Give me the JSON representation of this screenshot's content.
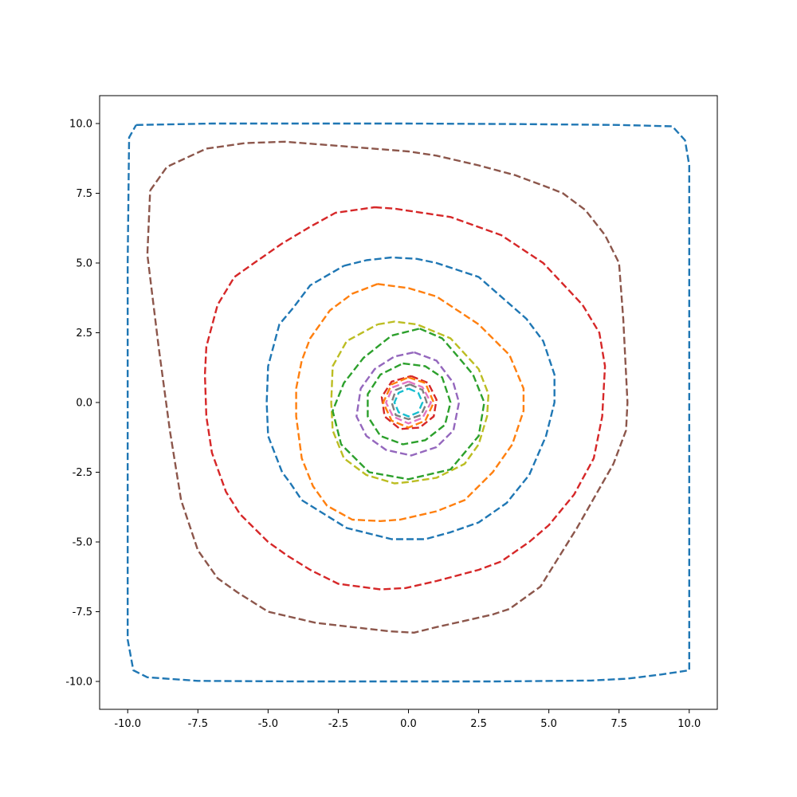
{
  "chart_data": {
    "type": "line",
    "title": "",
    "xlabel": "",
    "ylabel": "",
    "xlim": [
      -11,
      11
    ],
    "ylim": [
      -11,
      11
    ],
    "grid": false,
    "legend": "none",
    "x_ticks": [
      "-10.0",
      "-7.5",
      "-5.0",
      "-2.5",
      "0.0",
      "2.5",
      "5.0",
      "7.5",
      "10.0"
    ],
    "y_ticks": [
      "-10.0",
      "-7.5",
      "-5.0",
      "-2.5",
      "0.0",
      "2.5",
      "5.0",
      "7.5",
      "10.0"
    ],
    "series": [
      {
        "color": "#1f77b4",
        "style": "dashed",
        "points": [
          [
            -9.7,
            9.95
          ],
          [
            -7.0,
            10.0
          ],
          [
            -3.0,
            10.0
          ],
          [
            0.0,
            10.0
          ],
          [
            4.0,
            9.98
          ],
          [
            7.5,
            9.95
          ],
          [
            9.4,
            9.9
          ],
          [
            9.85,
            9.4
          ],
          [
            10.0,
            8.5
          ],
          [
            10.0,
            5.0
          ],
          [
            10.0,
            0.0
          ],
          [
            10.0,
            -5.0
          ],
          [
            10.0,
            -9.6
          ],
          [
            9.0,
            -9.75
          ],
          [
            7.8,
            -9.9
          ],
          [
            6.5,
            -9.97
          ],
          [
            3.0,
            -10.0
          ],
          [
            0.0,
            -10.0
          ],
          [
            -4.0,
            -10.0
          ],
          [
            -7.5,
            -9.98
          ],
          [
            -9.3,
            -9.85
          ],
          [
            -9.8,
            -9.6
          ],
          [
            -10.0,
            -8.5
          ],
          [
            -10.0,
            -5.0
          ],
          [
            -10.0,
            0.0
          ],
          [
            -10.0,
            5.0
          ],
          [
            -9.95,
            9.5
          ],
          [
            -9.7,
            9.95
          ]
        ]
      },
      {
        "color": "#8c564b",
        "style": "dashed",
        "points": [
          [
            -9.2,
            7.6
          ],
          [
            -8.6,
            8.45
          ],
          [
            -7.2,
            9.1
          ],
          [
            -5.8,
            9.3
          ],
          [
            -4.4,
            9.35
          ],
          [
            -2.5,
            9.2
          ],
          [
            0.0,
            9.0
          ],
          [
            1.0,
            8.85
          ],
          [
            2.5,
            8.5
          ],
          [
            3.8,
            8.15
          ],
          [
            5.0,
            7.7
          ],
          [
            5.5,
            7.5
          ],
          [
            6.3,
            6.9
          ],
          [
            7.0,
            6.0
          ],
          [
            7.5,
            5.0
          ],
          [
            7.65,
            3.0
          ],
          [
            7.8,
            0.0
          ],
          [
            7.75,
            -1.0
          ],
          [
            7.3,
            -2.2
          ],
          [
            6.0,
            -4.5
          ],
          [
            4.7,
            -6.6
          ],
          [
            3.6,
            -7.4
          ],
          [
            3.0,
            -7.6
          ],
          [
            1.9,
            -7.85
          ],
          [
            1.0,
            -8.05
          ],
          [
            0.2,
            -8.25
          ],
          [
            -0.7,
            -8.2
          ],
          [
            -3.3,
            -7.9
          ],
          [
            -5.0,
            -7.5
          ],
          [
            -6.1,
            -6.8
          ],
          [
            -6.8,
            -6.3
          ],
          [
            -7.5,
            -5.3
          ],
          [
            -8.1,
            -3.5
          ],
          [
            -8.5,
            -1.0
          ],
          [
            -8.9,
            2.0
          ],
          [
            -9.3,
            5.3
          ],
          [
            -9.2,
            7.6
          ]
        ]
      },
      {
        "color": "#d62728",
        "style": "dashed",
        "points": [
          [
            -1.2,
            7.0
          ],
          [
            -0.5,
            6.95
          ],
          [
            1.5,
            6.65
          ],
          [
            3.3,
            6.0
          ],
          [
            4.8,
            5.0
          ],
          [
            6.2,
            3.5
          ],
          [
            6.8,
            2.5
          ],
          [
            7.0,
            1.3
          ],
          [
            6.9,
            -0.5
          ],
          [
            6.6,
            -2.0
          ],
          [
            5.9,
            -3.3
          ],
          [
            5.0,
            -4.4
          ],
          [
            4.3,
            -5.0
          ],
          [
            3.3,
            -5.7
          ],
          [
            2.5,
            -6.0
          ],
          [
            1.0,
            -6.4
          ],
          [
            -0.1,
            -6.65
          ],
          [
            -1.0,
            -6.7
          ],
          [
            -2.5,
            -6.5
          ],
          [
            -3.5,
            -6.0
          ],
          [
            -4.3,
            -5.5
          ],
          [
            -5.0,
            -5.0
          ],
          [
            -6.0,
            -4.0
          ],
          [
            -6.5,
            -3.2
          ],
          [
            -7.0,
            -1.8
          ],
          [
            -7.2,
            -0.5
          ],
          [
            -7.25,
            1.0
          ],
          [
            -7.2,
            2.0
          ],
          [
            -6.8,
            3.5
          ],
          [
            -6.2,
            4.5
          ],
          [
            -5.5,
            5.0
          ],
          [
            -4.5,
            5.7
          ],
          [
            -3.5,
            6.3
          ],
          [
            -2.6,
            6.8
          ],
          [
            -1.2,
            7.0
          ]
        ]
      },
      {
        "color": "#1f77b4",
        "style": "dashed",
        "points": [
          [
            -2.3,
            4.9
          ],
          [
            -1.5,
            5.1
          ],
          [
            -0.6,
            5.2
          ],
          [
            0.3,
            5.15
          ],
          [
            1.0,
            5.0
          ],
          [
            2.5,
            4.5
          ],
          [
            4.2,
            3.0
          ],
          [
            4.8,
            2.2
          ],
          [
            5.2,
            1.0
          ],
          [
            5.2,
            0.0
          ],
          [
            4.9,
            -1.2
          ],
          [
            4.3,
            -2.6
          ],
          [
            3.5,
            -3.6
          ],
          [
            2.5,
            -4.3
          ],
          [
            1.5,
            -4.65
          ],
          [
            0.6,
            -4.9
          ],
          [
            -0.6,
            -4.9
          ],
          [
            -2.2,
            -4.5
          ],
          [
            -3.0,
            -4.0
          ],
          [
            -3.8,
            -3.5
          ],
          [
            -4.2,
            -2.9
          ],
          [
            -4.5,
            -2.5
          ],
          [
            -5.0,
            -1.2
          ],
          [
            -5.05,
            0.0
          ],
          [
            -5.0,
            1.3
          ],
          [
            -4.6,
            2.8
          ],
          [
            -4.1,
            3.4
          ],
          [
            -3.5,
            4.2
          ],
          [
            -2.3,
            4.9
          ]
        ]
      },
      {
        "color": "#ff7f0e",
        "style": "dashed",
        "points": [
          [
            -1.1,
            4.25
          ],
          [
            0.0,
            4.1
          ],
          [
            1.0,
            3.8
          ],
          [
            2.5,
            2.8
          ],
          [
            3.6,
            1.7
          ],
          [
            4.1,
            0.5
          ],
          [
            4.1,
            -0.3
          ],
          [
            3.7,
            -1.5
          ],
          [
            3.0,
            -2.5
          ],
          [
            2.0,
            -3.5
          ],
          [
            1.0,
            -3.9
          ],
          [
            -0.3,
            -4.2
          ],
          [
            -1.0,
            -4.25
          ],
          [
            -2.0,
            -4.2
          ],
          [
            -2.9,
            -3.7
          ],
          [
            -3.4,
            -3.0
          ],
          [
            -3.8,
            -2.0
          ],
          [
            -4.0,
            -0.5
          ],
          [
            -4.0,
            0.5
          ],
          [
            -3.8,
            1.5
          ],
          [
            -3.5,
            2.3
          ],
          [
            -2.8,
            3.3
          ],
          [
            -2.0,
            3.9
          ],
          [
            -1.1,
            4.25
          ]
        ]
      },
      {
        "color": "#bcbd22",
        "style": "dashed",
        "points": [
          [
            -1.1,
            2.8
          ],
          [
            -0.5,
            2.9
          ],
          [
            0.3,
            2.8
          ],
          [
            1.5,
            2.3
          ],
          [
            2.5,
            1.2
          ],
          [
            2.85,
            0.3
          ],
          [
            2.8,
            -0.5
          ],
          [
            2.5,
            -1.5
          ],
          [
            2.0,
            -2.2
          ],
          [
            1.0,
            -2.7
          ],
          [
            0.0,
            -2.85
          ],
          [
            -0.5,
            -2.9
          ],
          [
            -1.5,
            -2.6
          ],
          [
            -2.3,
            -2.0
          ],
          [
            -2.7,
            -1.0
          ],
          [
            -2.75,
            0.0
          ],
          [
            -2.7,
            1.3
          ],
          [
            -2.2,
            2.2
          ],
          [
            -1.1,
            2.8
          ]
        ]
      },
      {
        "color": "#2ca02c",
        "style": "dashed",
        "points": [
          [
            0.4,
            2.65
          ],
          [
            1.2,
            2.3
          ],
          [
            1.8,
            1.6
          ],
          [
            2.3,
            1.0
          ],
          [
            2.7,
            0.0
          ],
          [
            2.5,
            -1.2
          ],
          [
            1.5,
            -2.4
          ],
          [
            0.0,
            -2.75
          ],
          [
            -1.4,
            -2.5
          ],
          [
            -2.4,
            -1.5
          ],
          [
            -2.7,
            -0.3
          ],
          [
            -2.3,
            0.7
          ],
          [
            -1.6,
            1.6
          ],
          [
            -0.6,
            2.4
          ],
          [
            0.4,
            2.65
          ]
        ]
      },
      {
        "color": "#9467bd",
        "style": "dashed",
        "points": [
          [
            0.2,
            1.8
          ],
          [
            1.0,
            1.5
          ],
          [
            1.6,
            0.7
          ],
          [
            1.8,
            0.0
          ],
          [
            1.6,
            -1.0
          ],
          [
            1.0,
            -1.6
          ],
          [
            0.1,
            -1.9
          ],
          [
            -0.8,
            -1.7
          ],
          [
            -1.5,
            -1.2
          ],
          [
            -1.85,
            -0.5
          ],
          [
            -1.7,
            0.5
          ],
          [
            -1.2,
            1.2
          ],
          [
            -0.5,
            1.65
          ],
          [
            0.2,
            1.8
          ]
        ]
      },
      {
        "color": "#2ca02c",
        "style": "dashed",
        "points": [
          [
            -0.2,
            1.4
          ],
          [
            0.6,
            1.3
          ],
          [
            1.2,
            0.9
          ],
          [
            1.5,
            0.0
          ],
          [
            1.3,
            -0.8
          ],
          [
            0.6,
            -1.35
          ],
          [
            -0.2,
            -1.5
          ],
          [
            -1.0,
            -1.2
          ],
          [
            -1.45,
            -0.5
          ],
          [
            -1.45,
            0.3
          ],
          [
            -1.0,
            1.0
          ],
          [
            -0.2,
            1.4
          ]
        ]
      },
      {
        "color": "#d62728",
        "style": "dashed",
        "points": [
          [
            0.1,
            0.95
          ],
          [
            0.7,
            0.7
          ],
          [
            1.0,
            0.1
          ],
          [
            0.9,
            -0.5
          ],
          [
            0.4,
            -0.9
          ],
          [
            -0.3,
            -0.95
          ],
          [
            -0.85,
            -0.5
          ],
          [
            -0.95,
            0.2
          ],
          [
            -0.6,
            0.75
          ],
          [
            0.1,
            0.95
          ]
        ]
      },
      {
        "color": "#ff7f0e",
        "style": "dashed",
        "points": [
          [
            0.0,
            0.9
          ],
          [
            0.6,
            0.7
          ],
          [
            0.9,
            0.0
          ],
          [
            0.6,
            -0.65
          ],
          [
            0.0,
            -0.9
          ],
          [
            -0.6,
            -0.65
          ],
          [
            -0.9,
            0.0
          ],
          [
            -0.6,
            0.65
          ],
          [
            0.0,
            0.9
          ]
        ]
      },
      {
        "color": "#e377c2",
        "style": "dashed",
        "points": [
          [
            0.0,
            0.75
          ],
          [
            0.5,
            0.55
          ],
          [
            0.8,
            0.0
          ],
          [
            0.5,
            -0.55
          ],
          [
            0.0,
            -0.75
          ],
          [
            -0.55,
            -0.5
          ],
          [
            -0.8,
            0.0
          ],
          [
            -0.55,
            0.55
          ],
          [
            0.0,
            0.75
          ]
        ]
      },
      {
        "color": "#7f7f7f",
        "style": "dashed",
        "points": [
          [
            0.05,
            0.65
          ],
          [
            0.5,
            0.45
          ],
          [
            0.65,
            0.0
          ],
          [
            0.45,
            -0.45
          ],
          [
            0.0,
            -0.6
          ],
          [
            -0.45,
            -0.45
          ],
          [
            -0.6,
            0.0
          ],
          [
            -0.45,
            0.45
          ],
          [
            0.05,
            0.65
          ]
        ]
      },
      {
        "color": "#17becf",
        "style": "dashed",
        "points": [
          [
            0.0,
            0.5
          ],
          [
            0.35,
            0.35
          ],
          [
            0.5,
            0.0
          ],
          [
            0.35,
            -0.35
          ],
          [
            0.0,
            -0.5
          ],
          [
            -0.35,
            -0.35
          ],
          [
            -0.5,
            0.0
          ],
          [
            -0.35,
            0.35
          ],
          [
            0.0,
            0.5
          ]
        ]
      }
    ]
  }
}
